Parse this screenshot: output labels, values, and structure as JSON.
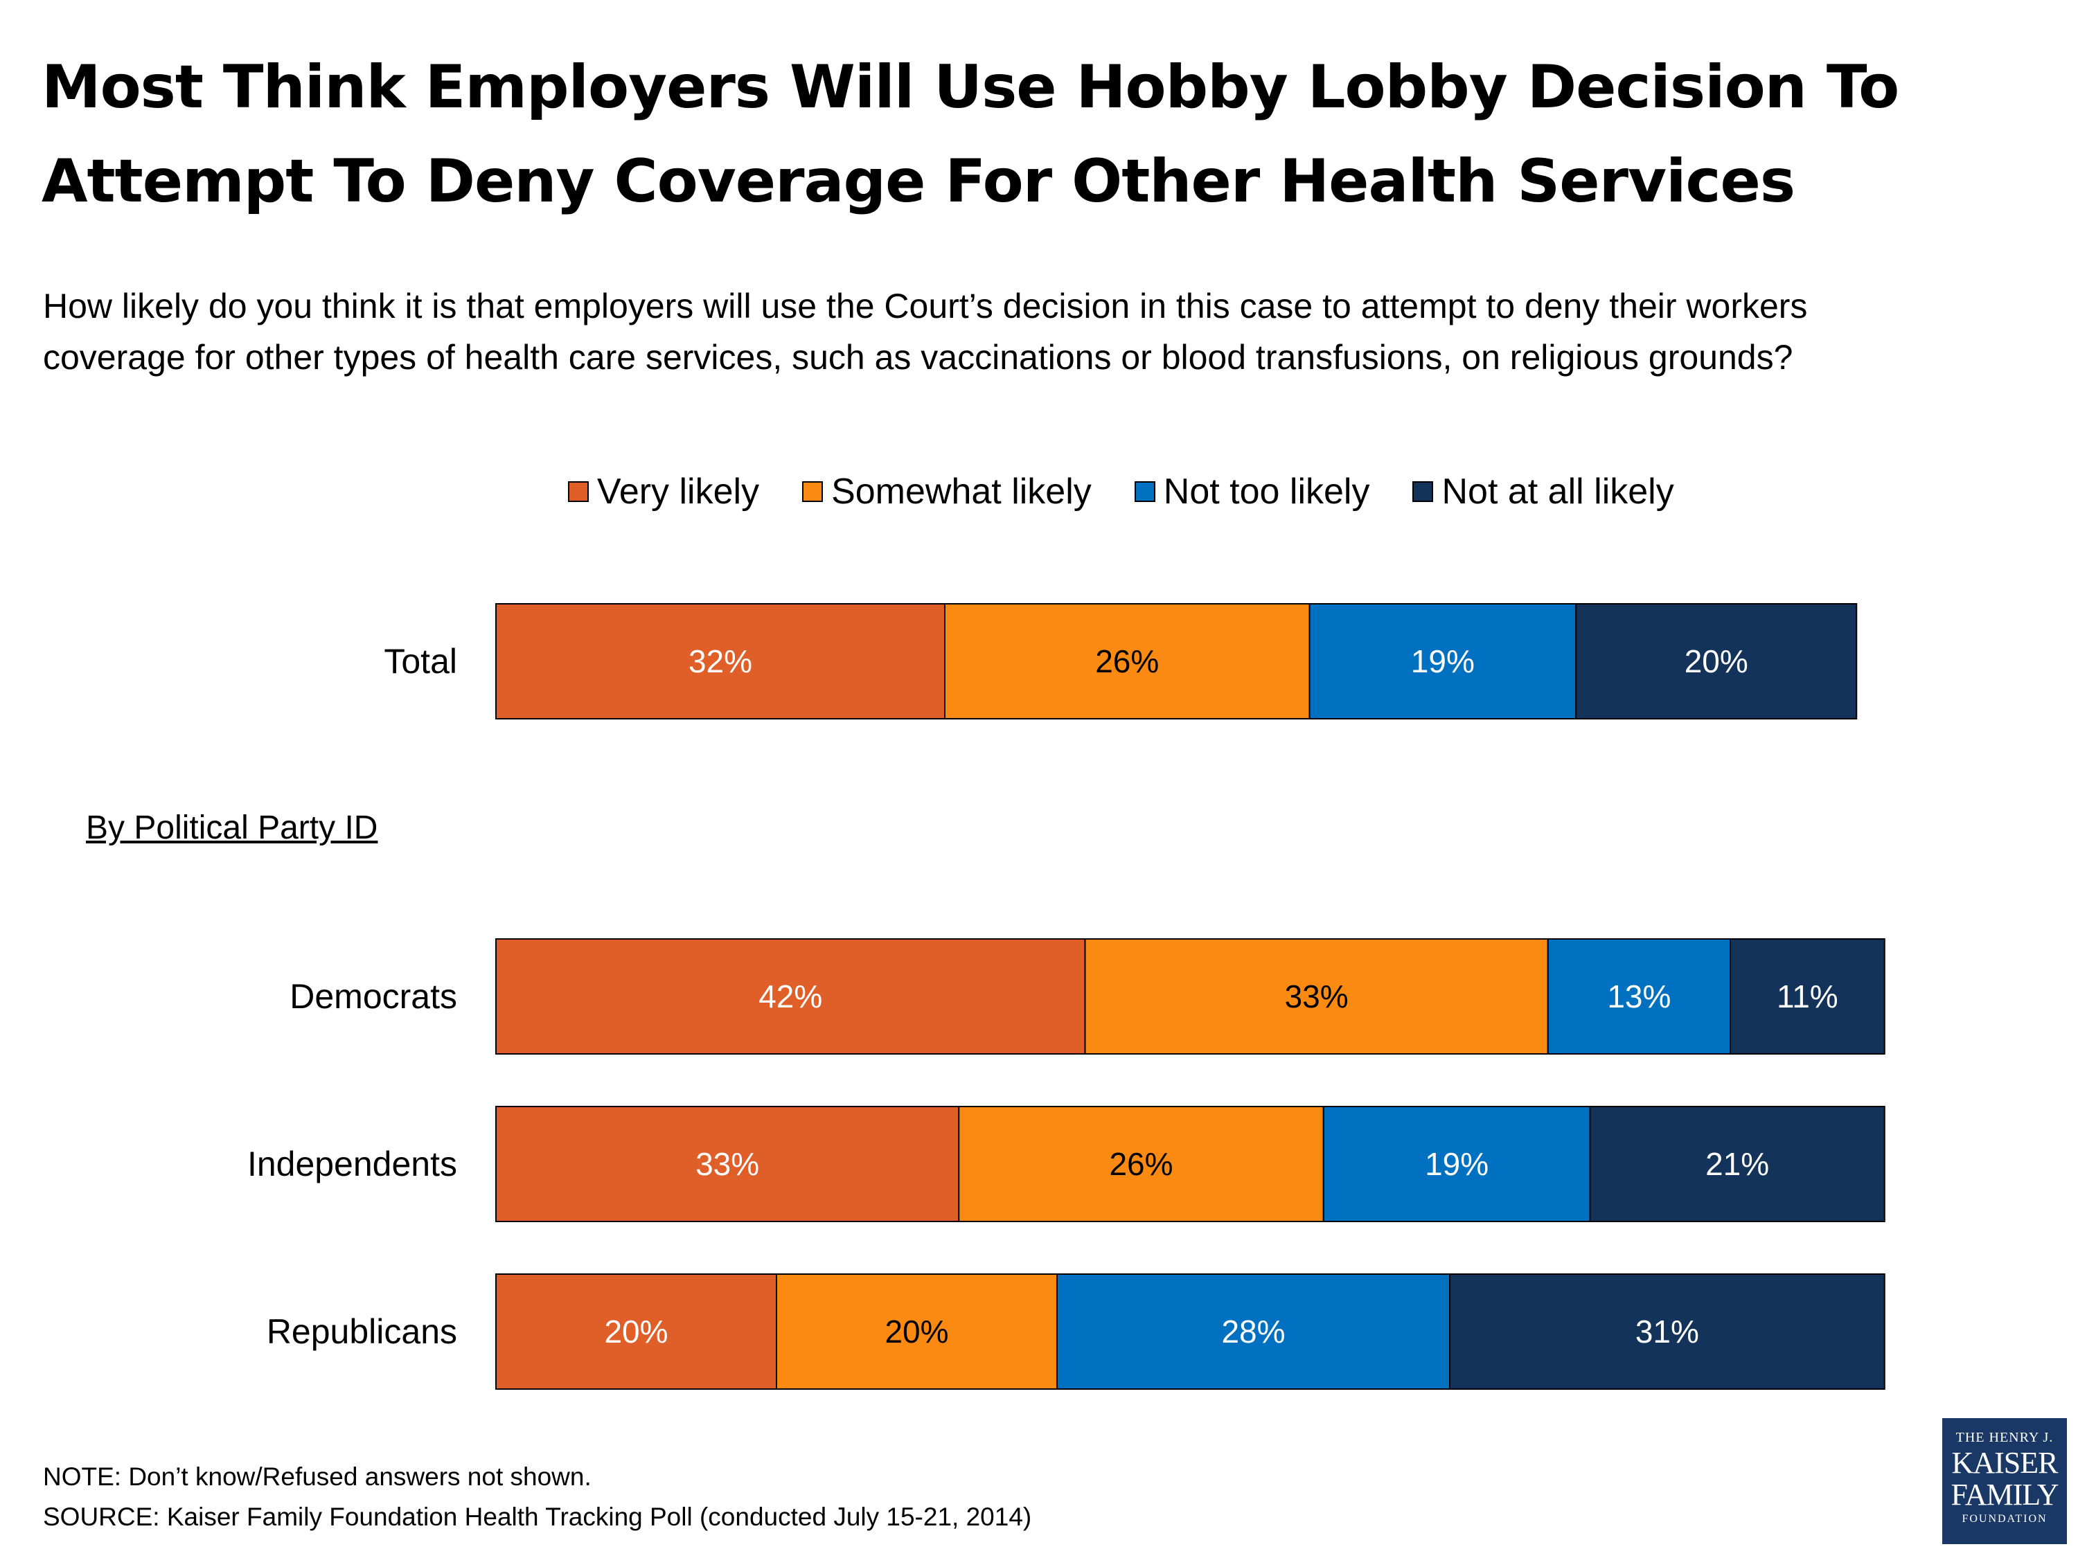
{
  "title_lines": [
    "Most Think Employers Will Use Hobby Lobby Decision To",
    "Attempt To Deny Coverage For Other Health Services"
  ],
  "question_lines": [
    "How likely do you think it is that employers will use the Court’s decision in this case to attempt to deny their workers",
    "coverage for other types of health care services, such as vaccinations or blood transfusions, on religious grounds?"
  ],
  "section_label": "By Political Party ID",
  "notes": {
    "note": "NOTE: Don’t know/Refused answers not shown.",
    "source": "SOURCE: Kaiser Family Foundation Health Tracking Poll (conducted July 15-21, 2014)"
  },
  "logo": {
    "line1": "THE HENRY J.",
    "line2": "KAISER",
    "line3": "FAMILY",
    "line4": "FOUNDATION"
  },
  "colors": {
    "very_likely": "#e05e27",
    "somewhat_likely": "#fb8a13",
    "not_too_likely": "#0070c0",
    "not_at_all_likely": "#14335a"
  },
  "chart_data": {
    "type": "bar",
    "orientation": "horizontal",
    "stacked": true,
    "categories": [
      "Total",
      "Democrats",
      "Independents",
      "Republicans"
    ],
    "series": [
      {
        "name": "Very likely",
        "values": [
          32,
          42,
          33,
          20
        ],
        "color": "#e05e27",
        "label_color": "#ffffff"
      },
      {
        "name": "Somewhat likely",
        "values": [
          26,
          33,
          26,
          20
        ],
        "color": "#fb8a13",
        "label_color": "#000000"
      },
      {
        "name": "Not too likely",
        "values": [
          19,
          13,
          19,
          28
        ],
        "color": "#0070c0",
        "label_color": "#ffffff"
      },
      {
        "name": "Not at all likely",
        "values": [
          20,
          11,
          21,
          31
        ],
        "color": "#14335a",
        "label_color": "#ffffff"
      }
    ],
    "value_suffix": "%",
    "legend_position": "top",
    "grid": false,
    "xlim": [
      0,
      100
    ]
  }
}
